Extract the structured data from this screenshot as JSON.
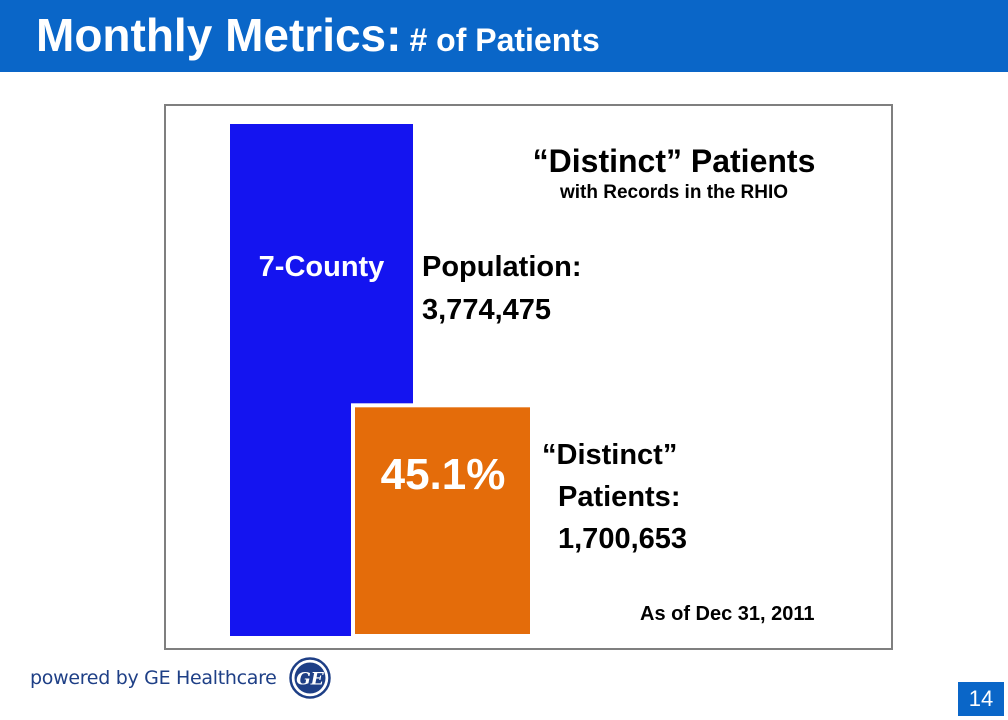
{
  "header": {
    "title": "Monthly Metrics:",
    "subtitle": "# of Patients"
  },
  "colors": {
    "header_bg": "#0a66c8",
    "population_bar": "#1414f0",
    "distinct_bar": "#e46c0a",
    "brand_text": "#1e3f86"
  },
  "chart_data": {
    "type": "bar",
    "title": "“Distinct” Patients",
    "subtitle": "with Records in the RHIO",
    "bars": [
      {
        "inner_label": "7-County",
        "label_lines": [
          "Population:",
          "3,774,475"
        ],
        "value": 3774475,
        "color": "#1414f0"
      },
      {
        "inner_label": "45.1%",
        "label_lines": [
          "“Distinct”",
          "Patients:",
          "1,700,653"
        ],
        "value": 1700653,
        "color": "#e46c0a"
      }
    ],
    "note": "As of Dec 31, 2011"
  },
  "footer": {
    "powered_by": "powered by GE Healthcare",
    "logo_text": "GE",
    "page_number": "14"
  }
}
